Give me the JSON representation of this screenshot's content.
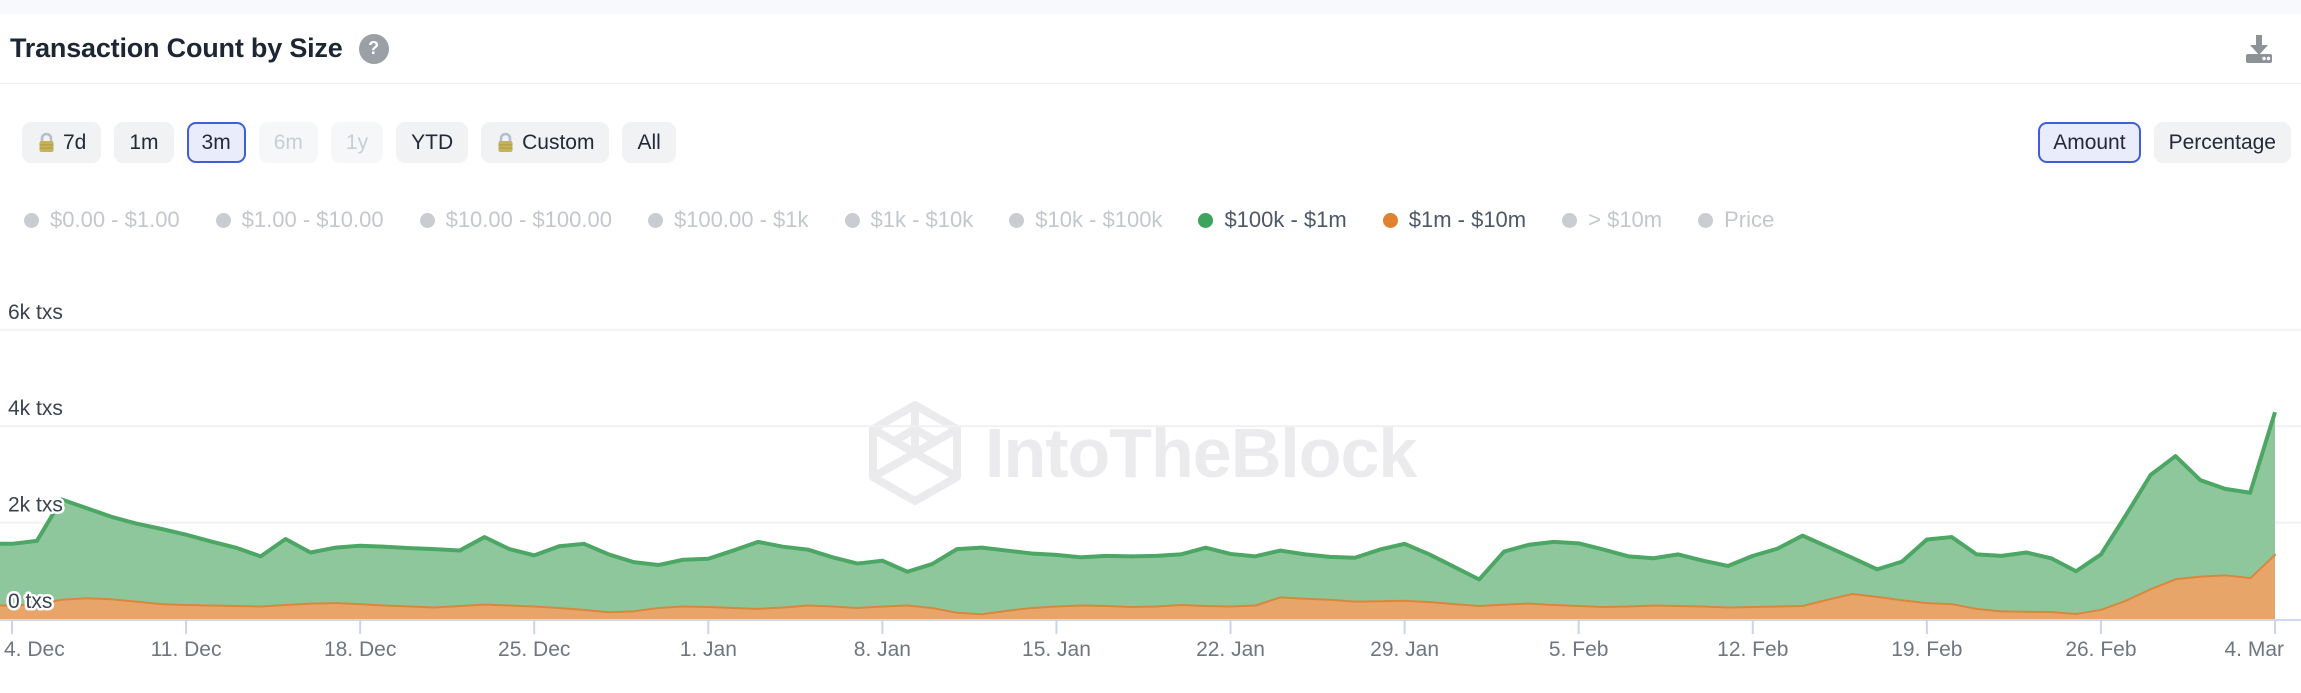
{
  "header": {
    "title": "Transaction Count by Size",
    "help_icon": "question-mark",
    "download_icon": "download"
  },
  "toolbar": {
    "ranges": [
      {
        "label": "7d",
        "locked": true,
        "state": "normal"
      },
      {
        "label": "1m",
        "locked": false,
        "state": "normal"
      },
      {
        "label": "3m",
        "locked": false,
        "state": "selected"
      },
      {
        "label": "6m",
        "locked": false,
        "state": "disabled"
      },
      {
        "label": "1y",
        "locked": false,
        "state": "disabled"
      },
      {
        "label": "YTD",
        "locked": false,
        "state": "normal"
      },
      {
        "label": "Custom",
        "locked": true,
        "state": "normal"
      },
      {
        "label": "All",
        "locked": false,
        "state": "normal"
      }
    ],
    "modes": [
      {
        "label": "Amount",
        "state": "selected"
      },
      {
        "label": "Percentage",
        "state": "normal"
      }
    ]
  },
  "legend": {
    "items": [
      {
        "label": "$0.00 - $1.00",
        "state": "inactive",
        "color": "#c9ccd1"
      },
      {
        "label": "$1.00 - $10.00",
        "state": "inactive",
        "color": "#c9ccd1"
      },
      {
        "label": "$10.00 - $100.00",
        "state": "inactive",
        "color": "#c9ccd1"
      },
      {
        "label": "$100.00 - $1k",
        "state": "inactive",
        "color": "#c9ccd1"
      },
      {
        "label": "$1k - $10k",
        "state": "inactive",
        "color": "#c9ccd1"
      },
      {
        "label": "$10k - $100k",
        "state": "inactive",
        "color": "#c9ccd1"
      },
      {
        "label": "$100k - $1m",
        "state": "active",
        "color": "#3fa45b"
      },
      {
        "label": "$1m - $10m",
        "state": "active",
        "color": "#e0822f"
      },
      {
        "label": "> $10m",
        "state": "inactive",
        "color": "#c9ccd1"
      },
      {
        "label": "Price",
        "state": "inactive",
        "color": "#c9ccd1"
      }
    ]
  },
  "watermark": {
    "text": "IntoTheBlock"
  },
  "chart_data": {
    "type": "area",
    "stacked": true,
    "title": "Transaction Count by Size",
    "y_unit": "txs",
    "y_gridlines": [
      2000,
      4000,
      6000
    ],
    "y_tick_labels": [
      "6k txs",
      "4k txs",
      "2k txs",
      "0 txs"
    ],
    "y_tick_values": [
      6000,
      4000,
      2000,
      0
    ],
    "ylim": [
      0,
      7800
    ],
    "x_tick_labels": [
      "4. Dec",
      "11. Dec",
      "18. Dec",
      "25. Dec",
      "1. Jan",
      "8. Jan",
      "15. Jan",
      "22. Jan",
      "29. Jan",
      "5. Feb",
      "12. Feb",
      "19. Feb",
      "26. Feb",
      "4. Mar"
    ],
    "points_per_tick": 7,
    "legend_position": "top",
    "grid": "horizontal-only",
    "series": [
      {
        "name": "$1m - $10m",
        "fill": "#e8a569",
        "line": "#d9873c",
        "values": [
          300,
          330,
          420,
          450,
          430,
          380,
          330,
          310,
          300,
          290,
          280,
          310,
          340,
          350,
          330,
          300,
          280,
          260,
          290,
          320,
          300,
          280,
          250,
          210,
          160,
          180,
          250,
          280,
          270,
          250,
          230,
          260,
          300,
          280,
          250,
          280,
          300,
          250,
          150,
          120,
          190,
          250,
          280,
          300,
          290,
          270,
          280,
          310,
          290,
          280,
          300,
          470,
          440,
          420,
          380,
          390,
          400,
          370,
          330,
          290,
          320,
          340,
          310,
          290,
          270,
          280,
          300,
          290,
          280,
          260,
          270,
          280,
          290,
          420,
          540,
          480,
          410,
          350,
          330,
          230,
          180,
          170,
          165,
          125,
          210,
          400,
          640,
          845,
          900,
          927,
          870,
          1360
        ]
      },
      {
        "name": "$100k - $1m",
        "fill": "#8fc79c",
        "line": "#4ca664",
        "values": [
          1260,
          1290,
          2060,
          1850,
          1690,
          1600,
          1540,
          1440,
          1310,
          1190,
          1020,
          1350,
          1040,
          1130,
          1190,
          1200,
          1190,
          1190,
          1130,
          1380,
          1150,
          1040,
          1260,
          1350,
          1180,
          1000,
          870,
          950,
          980,
          1170,
          1370,
          1240,
          1140,
          1000,
          900,
          930,
          680,
          890,
          1300,
          1360,
          1230,
          1110,
          1050,
          980,
          1020,
          1030,
          1030,
          1030,
          1190,
          1070,
          1000,
          950,
          900,
          870,
          890,
          1050,
          1160,
          970,
          750,
          530,
          1080,
          1200,
          1290,
          1280,
          1170,
          1020,
          960,
          1050,
          930,
          840,
          1040,
          1180,
          1440,
          1080,
          730,
          550,
          780,
          1300,
          1370,
          1110,
          1130,
          1210,
          1095,
          865,
          1130,
          1750,
          2350,
          2535,
          1980,
          1773,
          1750,
          2930
        ]
      }
    ]
  }
}
